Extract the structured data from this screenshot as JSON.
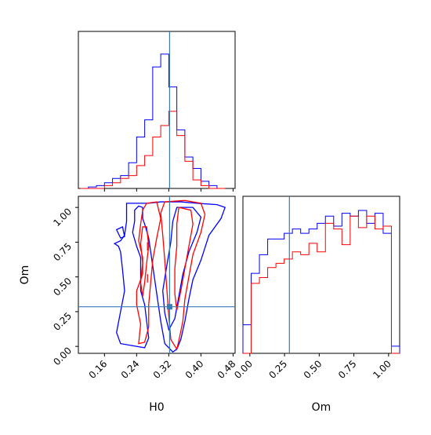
{
  "chart_data": [
    {
      "type": "histogram",
      "panel": "H0 marginal",
      "x": [
        0.1,
        0.12,
        0.14,
        0.16,
        0.18,
        0.2,
        0.22,
        0.24,
        0.26,
        0.28,
        0.3,
        0.32,
        0.34,
        0.36,
        0.38,
        0.4,
        0.42,
        0.44
      ],
      "xlim": [
        0.095,
        0.485
      ],
      "truth_x": 0.322,
      "series": [
        {
          "color": "#0000ff",
          "values": [
            0,
            0.01,
            0.02,
            0.04,
            0.07,
            0.09,
            0.18,
            0.36,
            0.48,
            0.85,
            0.94,
            0.71,
            0.41,
            0.22,
            0.14,
            0.05,
            0.02,
            0
          ]
        },
        {
          "color": "#ff0000",
          "values": [
            0,
            0,
            0,
            0.02,
            0.04,
            0.07,
            0.09,
            0.16,
            0.23,
            0.36,
            0.44,
            0.54,
            0.37,
            0.19,
            0.06,
            0.02,
            0,
            0
          ]
        }
      ]
    },
    {
      "type": "contour",
      "panel": "H0 vs Om joint",
      "xlabel": "H0",
      "ylabel": "Om",
      "xlim": [
        0.095,
        0.485
      ],
      "ylim": [
        -0.05,
        1.08
      ],
      "xticks": [
        "0.16",
        "0.24",
        "0.32",
        "0.40",
        "0.48"
      ],
      "yticks": [
        "0.00",
        "0.25",
        "0.50",
        "0.75",
        "1.00"
      ],
      "truth": {
        "x": 0.322,
        "y": 0.285
      },
      "series": [
        {
          "color": "#0000ff",
          "levels": 2
        },
        {
          "color": "#ff0000",
          "levels": 2
        }
      ]
    },
    {
      "type": "histogram",
      "panel": "Om marginal",
      "xlabel": "Om",
      "xlim": [
        -0.05,
        1.08
      ],
      "xticks": [
        "0.00",
        "0.25",
        "0.50",
        "0.75",
        "1.00"
      ],
      "truth_x": 0.285,
      "series": [
        {
          "color": "#0000ff",
          "values": [
            0.2,
            0.56,
            0.69,
            0.8,
            0.8,
            0.84,
            0.87,
            0.84,
            0.87,
            0.91,
            0.96,
            0.89,
            0.98,
            0.96,
            1.0,
            0.91,
            0.98,
            0.84,
            0.05
          ]
        },
        {
          "color": "#ff0000",
          "values": [
            0,
            0.49,
            0.53,
            0.6,
            0.63,
            0.66,
            0.71,
            0.69,
            0.77,
            0.71,
            0.91,
            0.87,
            0.76,
            0.96,
            0.88,
            0.96,
            0.87,
            0.89,
            0
          ]
        }
      ]
    }
  ]
}
